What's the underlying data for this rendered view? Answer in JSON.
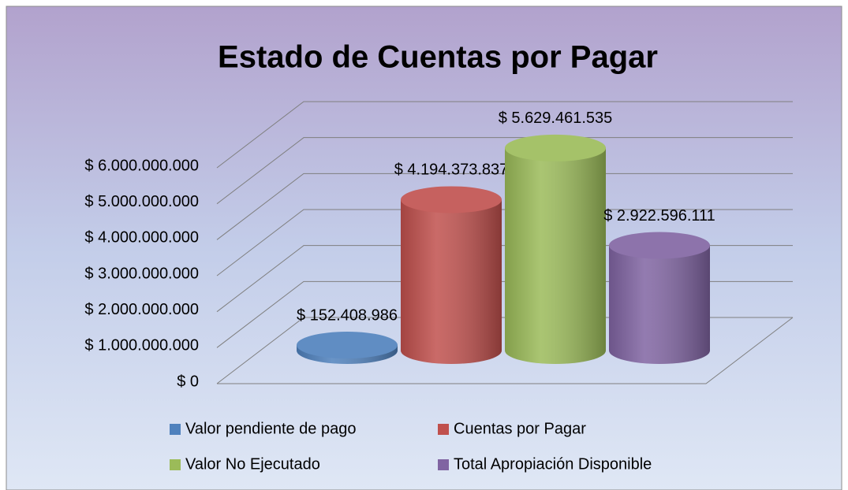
{
  "chart_data": {
    "type": "bar3d",
    "title": "Estado de Cuentas por Pagar",
    "series": [
      {
        "name": "Valor pendiente de pago",
        "color": "#4f81bd",
        "values": [
          152408986
        ],
        "value_labels": [
          "$ 152.408.986"
        ]
      },
      {
        "name": "Cuentas por Pagar",
        "color": "#c0504d",
        "values": [
          4194373837
        ],
        "value_labels": [
          "$ 4.194.373.837"
        ]
      },
      {
        "name": "Valor No Ejecutado",
        "color": "#9bbb59",
        "values": [
          5629461535
        ],
        "value_labels": [
          "$ 5.629.461.535"
        ]
      },
      {
        "name": "Total Apropiación Disponible",
        "color": "#8064a2",
        "values": [
          2922596111
        ],
        "value_labels": [
          "$ 2.922.596.111"
        ]
      }
    ],
    "ylim": [
      0,
      6000000000
    ],
    "yticks": [
      {
        "value": 0,
        "label": "$ 0"
      },
      {
        "value": 1000000000,
        "label": "$ 1.000.000.000"
      },
      {
        "value": 2000000000,
        "label": "$ 2.000.000.000"
      },
      {
        "value": 3000000000,
        "label": "$ 3.000.000.000"
      },
      {
        "value": 4000000000,
        "label": "$ 4.000.000.000"
      },
      {
        "value": 5000000000,
        "label": "$ 5.000.000.000"
      },
      {
        "value": 6000000000,
        "label": "$ 6.000.000.000"
      }
    ],
    "grid": true,
    "legend": "bottom"
  }
}
